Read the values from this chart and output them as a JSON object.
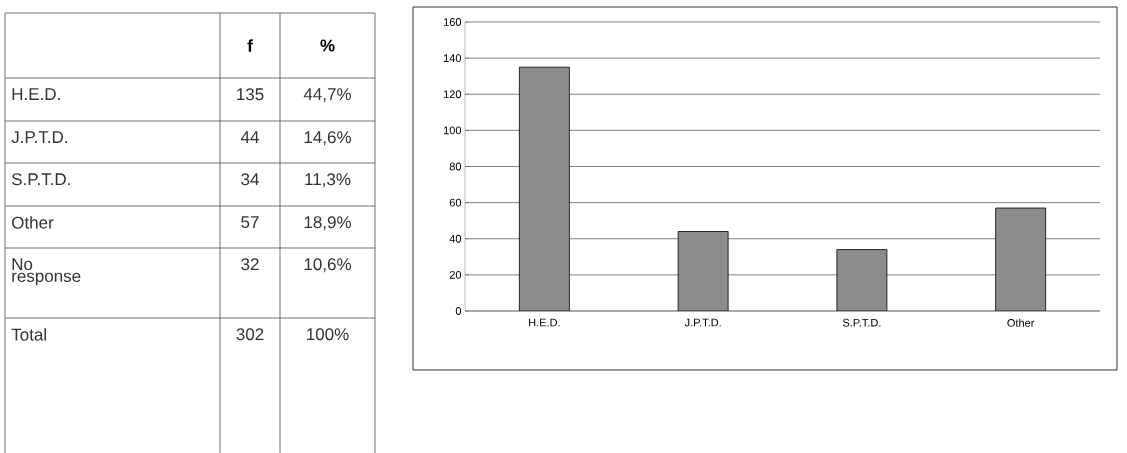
{
  "chart_data": [
    {
      "type": "other",
      "data_labels": true,
      "categories": [
        "H.E.D.",
        "J.P.T.D.",
        "S.P.T.D.",
        "Other",
        "No response",
        "Total"
      ],
      "series": [
        {
          "name": "f",
          "values": [
            135,
            44,
            34,
            57,
            32,
            302
          ]
        },
        {
          "name": "%",
          "values": [
            44.7,
            14.6,
            11.3,
            18.9,
            10.6,
            100
          ],
          "value_labels": [
            "44,7%",
            "14,6%",
            "11,3%",
            "18,9%",
            "10,6%",
            "100%"
          ]
        }
      ]
    },
    {
      "type": "bar",
      "categories": [
        "H.E.D.",
        "J.P.T.D.",
        "S.P.T.D.",
        "Other"
      ],
      "values": [
        135,
        44,
        34,
        57
      ],
      "color": "#8c8c8c",
      "ylim": [
        0,
        160
      ],
      "yticks": [
        0,
        20,
        40,
        60,
        80,
        100,
        120,
        140,
        160
      ],
      "grid": "y"
    }
  ]
}
